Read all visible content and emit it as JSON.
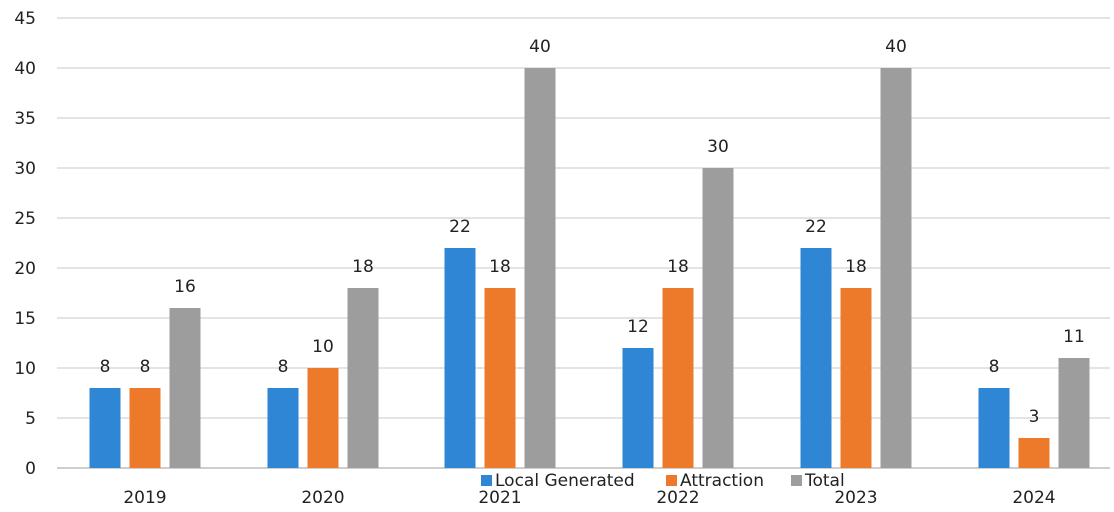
{
  "chart_data": {
    "type": "bar",
    "title": "",
    "xlabel": "",
    "ylabel": "",
    "categories": [
      "2019",
      "2020",
      "2021",
      "2022",
      "2023",
      "2024"
    ],
    "series": [
      {
        "name": "Local Generated",
        "color": "#2e86d4",
        "values": [
          8,
          8,
          22,
          12,
          22,
          8
        ]
      },
      {
        "name": "Attraction",
        "color": "#ec7a2a",
        "values": [
          8,
          10,
          18,
          18,
          18,
          3
        ]
      },
      {
        "name": "Total",
        "color": "#9d9d9d",
        "values": [
          16,
          18,
          40,
          30,
          40,
          11
        ]
      }
    ],
    "ylim": [
      0,
      45
    ],
    "yticks": [
      0,
      5,
      10,
      15,
      20,
      25,
      30,
      35,
      40,
      45
    ],
    "grid": true,
    "legend_position": "bottom-center"
  }
}
